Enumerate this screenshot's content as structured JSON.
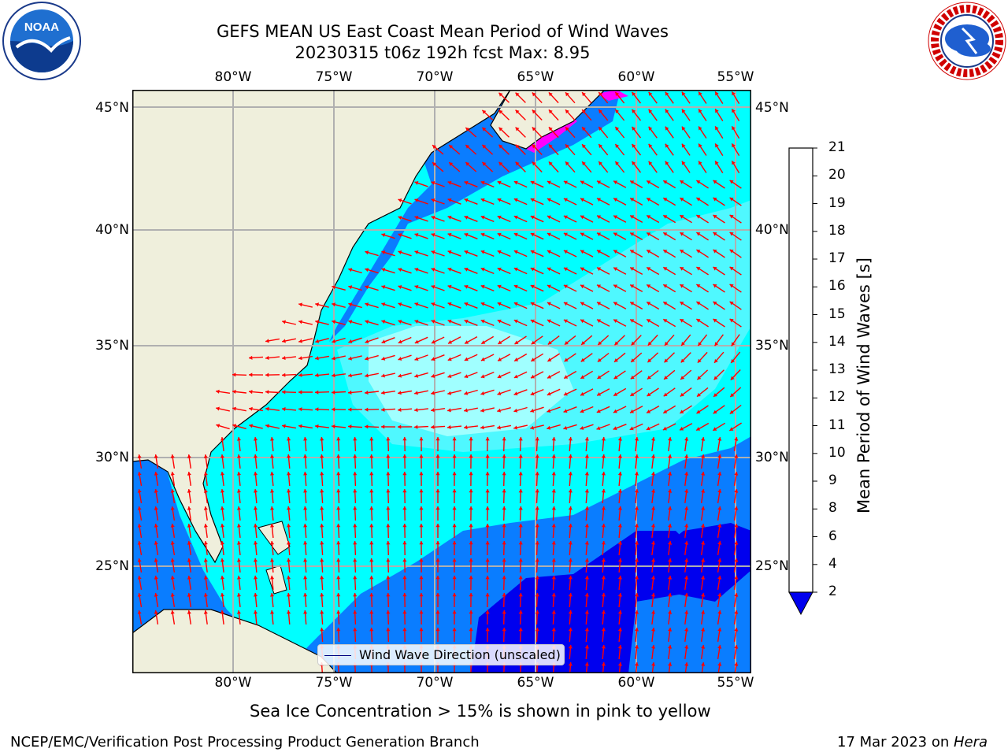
{
  "header": {
    "title_line1": "GEFS MEAN US East Coast Mean Period of Wind Waves",
    "title_line2": "20230315 t06z 192h fcst   Max: 8.95"
  },
  "logos": {
    "left": {
      "icon": "noaa-logo-icon",
      "text": "NOAA"
    },
    "right": {
      "icon": "nws-logo-icon",
      "text": "NATIONAL WEATHER SERVICE"
    }
  },
  "map": {
    "lon_labels": [
      "80°W",
      "75°W",
      "70°W",
      "65°W",
      "60°W",
      "55°W"
    ],
    "lat_labels": [
      "45°N",
      "40°N",
      "35°N",
      "30°N",
      "25°N"
    ],
    "colors": {
      "land": "#efefdc",
      "band_2_4": "#0a7dff",
      "band_4_6": "#00ffff",
      "band_6_8": "#4ff8ff",
      "band_8_9": "#a0ffff",
      "below_2": "#0000ee",
      "ice": "#ff00ff",
      "arrow": "#ff0000"
    }
  },
  "legend": {
    "label": "Wind Wave Direction (unscaled)"
  },
  "colorbar": {
    "title": "Mean Period of Wind Waves [s]",
    "ticks": [
      "2",
      "4",
      "6",
      "8",
      "9",
      "10",
      "11",
      "12",
      "13",
      "14",
      "15",
      "16",
      "17",
      "18",
      "19",
      "20",
      "21"
    ],
    "band_colors": [
      "#0a7dff",
      "#00ffff",
      "#4ff8ff",
      "#a0ffff",
      "#4ff08a",
      "#22dd22",
      "#00c800",
      "#55e000",
      "#aaee00",
      "#ccf000",
      "#e6f500",
      "#ffff00",
      "#ffd000",
      "#ffb000",
      "#ff8800",
      "#ff5500",
      "#ff2200",
      "#ff0000"
    ],
    "under_color": "#0000ee"
  },
  "note": "Sea Ice Concentration > 15% is shown in pink to yellow",
  "footer": {
    "left": "NCEP/EMC/Verification Post Processing Product Generation Branch",
    "date": "17 Mar 2023 on ",
    "host": "Hera"
  }
}
